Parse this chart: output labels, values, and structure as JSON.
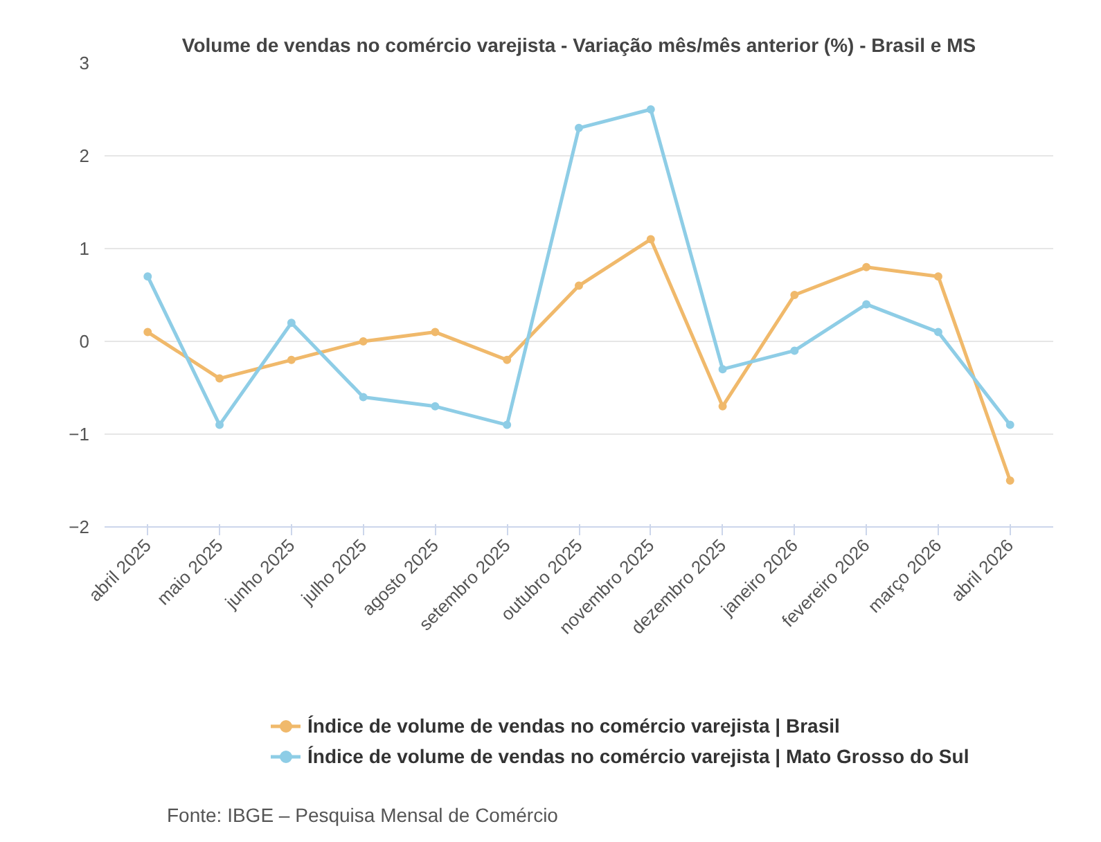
{
  "chart_data": {
    "type": "line",
    "title": "Volume de vendas no comércio varejista - Variação mês/mês anterior (%) - Brasil e MS",
    "categories": [
      "abril 2025",
      "maio 2025",
      "junho 2025",
      "julho 2025",
      "agosto 2025",
      "setembro 2025",
      "outubro 2025",
      "novembro 2025",
      "dezembro 2025",
      "janeiro 2026",
      "fevereiro 2026",
      "março 2026",
      "abril 2026"
    ],
    "series": [
      {
        "name": "Índice de volume de vendas no comércio varejista | Brasil",
        "color": "#f0b96b",
        "values": [
          0.1,
          -0.4,
          -0.2,
          0.0,
          0.1,
          -0.2,
          0.6,
          1.1,
          -0.7,
          0.5,
          0.8,
          0.7,
          -1.5
        ]
      },
      {
        "name": "Índice de volume de vendas no comércio varejista | Mato Grosso do Sul",
        "color": "#8ecde6",
        "values": [
          0.7,
          -0.9,
          0.2,
          -0.6,
          -0.7,
          -0.9,
          2.3,
          2.5,
          -0.3,
          -0.1,
          0.4,
          0.1,
          -0.9
        ]
      }
    ],
    "ylim": [
      -2,
      3
    ],
    "yticks": [
      {
        "value": -2,
        "label": "−2"
      },
      {
        "value": -1,
        "label": "−1"
      },
      0,
      1,
      2,
      3
    ],
    "grid": "y",
    "legend": "bottom",
    "marker": "circle",
    "line_style": "solid",
    "annotations": [
      "Fonte: IBGE – Pesquisa Mensal de Comércio"
    ]
  }
}
